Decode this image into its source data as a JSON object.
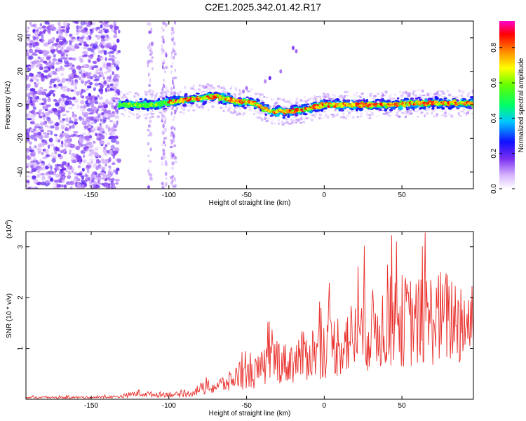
{
  "title": "C2E1.2025.342.01.42.R17",
  "colors": {
    "signal_line": "#e8302c",
    "axis": "#000000"
  },
  "chart_data": [
    {
      "type": "heatmap",
      "xlabel": "Height of straight line (km)",
      "ylabel": "Frequency (Hz)",
      "xlim": [
        -192,
        96
      ],
      "ylim": [
        -50,
        50
      ],
      "x_ticks": [
        -150,
        -100,
        -50,
        0,
        50
      ],
      "y_ticks": [
        -40,
        -20,
        0,
        20,
        40
      ],
      "grid": false,
      "ridge": {
        "x": [
          -132,
          -110,
          -90,
          -70,
          -55,
          -45,
          -35,
          -25,
          -15,
          0,
          20,
          40,
          60,
          80,
          96
        ],
        "y": [
          0,
          0,
          3,
          5,
          2,
          1,
          -4,
          -4,
          -3,
          0,
          0,
          0,
          1,
          1,
          1
        ]
      },
      "colorbar": {
        "label": "Normalized spectral amplitude",
        "range": [
          0,
          0.95
        ],
        "ticks": [
          0,
          0.2,
          0.4,
          0.6,
          0.8
        ],
        "tick_labels": [
          "0.0",
          "0.2",
          "0.4",
          "0.6",
          "0.8"
        ]
      }
    },
    {
      "type": "line",
      "xlabel": "Height of straight line (km)",
      "ylabel": "SNR (10 * v/v)",
      "y_multiplier": "(x10",
      "y_multiplier_exp": "4",
      "y_multiplier_close": ")",
      "xlim": [
        -192,
        96
      ],
      "ylim": [
        0,
        3.3
      ],
      "x_ticks": [
        -150,
        -100,
        -50,
        0,
        50
      ],
      "y_ticks": [
        1,
        2,
        3
      ],
      "grid": false,
      "series": [
        {
          "color": "#e8302c",
          "x": [
            -192,
            -140,
            -130,
            -120,
            -110,
            -100,
            -90,
            -80,
            -70,
            -60,
            -55,
            -50,
            -45,
            -40,
            -35,
            -30,
            -25,
            -20,
            -10,
            0,
            10,
            20,
            30,
            40,
            45,
            50,
            60,
            70,
            80,
            90,
            96
          ],
          "y": [
            0.03,
            0.04,
            0.06,
            0.12,
            0.09,
            0.1,
            0.08,
            0.2,
            0.25,
            0.35,
            0.5,
            0.45,
            0.5,
            0.6,
            0.75,
            0.8,
            0.7,
            0.75,
            0.9,
            1.0,
            1.1,
            1.25,
            1.35,
            1.45,
            1.6,
            1.55,
            1.5,
            1.6,
            1.6,
            1.55,
            1.6
          ]
        }
      ]
    }
  ]
}
